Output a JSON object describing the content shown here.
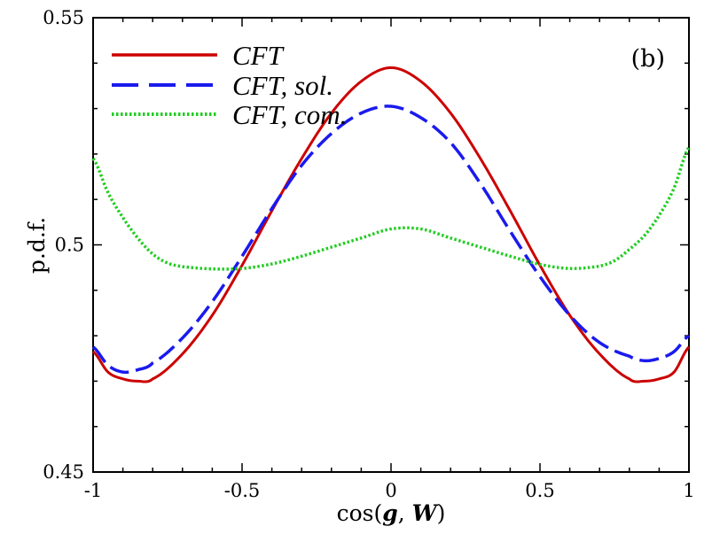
{
  "chart_data": {
    "type": "line",
    "title": "",
    "panel_label": "(b)",
    "xlabel": {
      "prefix": "cos(",
      "arg1": "g",
      "sep": ", ",
      "arg2": "W",
      "suffix": ")"
    },
    "ylabel": "p.d.f.",
    "xlim": [
      -1,
      1
    ],
    "ylim": [
      0.45,
      0.55
    ],
    "xticks": [
      -1,
      -0.5,
      0,
      0.5,
      1
    ],
    "xtick_labels": [
      "-1",
      "-0.5",
      "0",
      "0.5",
      "1"
    ],
    "yticks": [
      0.45,
      0.5,
      0.55
    ],
    "ytick_labels": [
      "0.45",
      "0.5",
      "0.55"
    ],
    "grid": false,
    "legend_position": "top-left",
    "series": [
      {
        "name": "CFT",
        "color": "#cc0000",
        "style": "solid",
        "x": [
          -1.0,
          -0.95,
          -0.9,
          -0.85,
          -0.8,
          -0.7,
          -0.6,
          -0.5,
          -0.4,
          -0.3,
          -0.2,
          -0.1,
          0.0,
          0.1,
          0.2,
          0.3,
          0.4,
          0.5,
          0.6,
          0.7,
          0.8,
          0.85,
          0.9,
          0.95,
          1.0
        ],
        "values": [
          0.4765,
          0.472,
          0.4705,
          0.47,
          0.4705,
          0.476,
          0.4845,
          0.4955,
          0.5075,
          0.519,
          0.529,
          0.536,
          0.539,
          0.536,
          0.529,
          0.519,
          0.5075,
          0.4955,
          0.4845,
          0.476,
          0.4705,
          0.47,
          0.4705,
          0.472,
          0.4775
        ]
      },
      {
        "name": "CFT, sol.",
        "color": "#1a1aee",
        "style": "dashed",
        "x": [
          -1.0,
          -0.95,
          -0.9,
          -0.85,
          -0.8,
          -0.7,
          -0.6,
          -0.5,
          -0.4,
          -0.3,
          -0.2,
          -0.1,
          0.0,
          0.1,
          0.2,
          0.3,
          0.4,
          0.5,
          0.6,
          0.7,
          0.8,
          0.85,
          0.9,
          0.95,
          1.0
        ],
        "values": [
          0.4775,
          0.4735,
          0.472,
          0.4725,
          0.474,
          0.4795,
          0.4875,
          0.4975,
          0.508,
          0.5175,
          0.5245,
          0.529,
          0.5305,
          0.528,
          0.5225,
          0.5135,
          0.503,
          0.493,
          0.4845,
          0.4785,
          0.4755,
          0.4745,
          0.475,
          0.4765,
          0.48
        ]
      },
      {
        "name": "CFT, com.",
        "color": "#22cc22",
        "style": "dotted",
        "x": [
          -1.0,
          -0.95,
          -0.9,
          -0.85,
          -0.8,
          -0.75,
          -0.7,
          -0.6,
          -0.5,
          -0.4,
          -0.3,
          -0.2,
          -0.1,
          0.0,
          0.1,
          0.2,
          0.3,
          0.4,
          0.5,
          0.6,
          0.7,
          0.75,
          0.8,
          0.85,
          0.9,
          0.95,
          1.0
        ],
        "values": [
          0.519,
          0.5115,
          0.506,
          0.5015,
          0.498,
          0.496,
          0.4952,
          0.4947,
          0.4948,
          0.4958,
          0.4975,
          0.4995,
          0.5015,
          0.5035,
          0.5035,
          0.5015,
          0.4995,
          0.4975,
          0.4957,
          0.4948,
          0.4953,
          0.4965,
          0.499,
          0.502,
          0.5065,
          0.5125,
          0.5215
        ]
      }
    ]
  }
}
